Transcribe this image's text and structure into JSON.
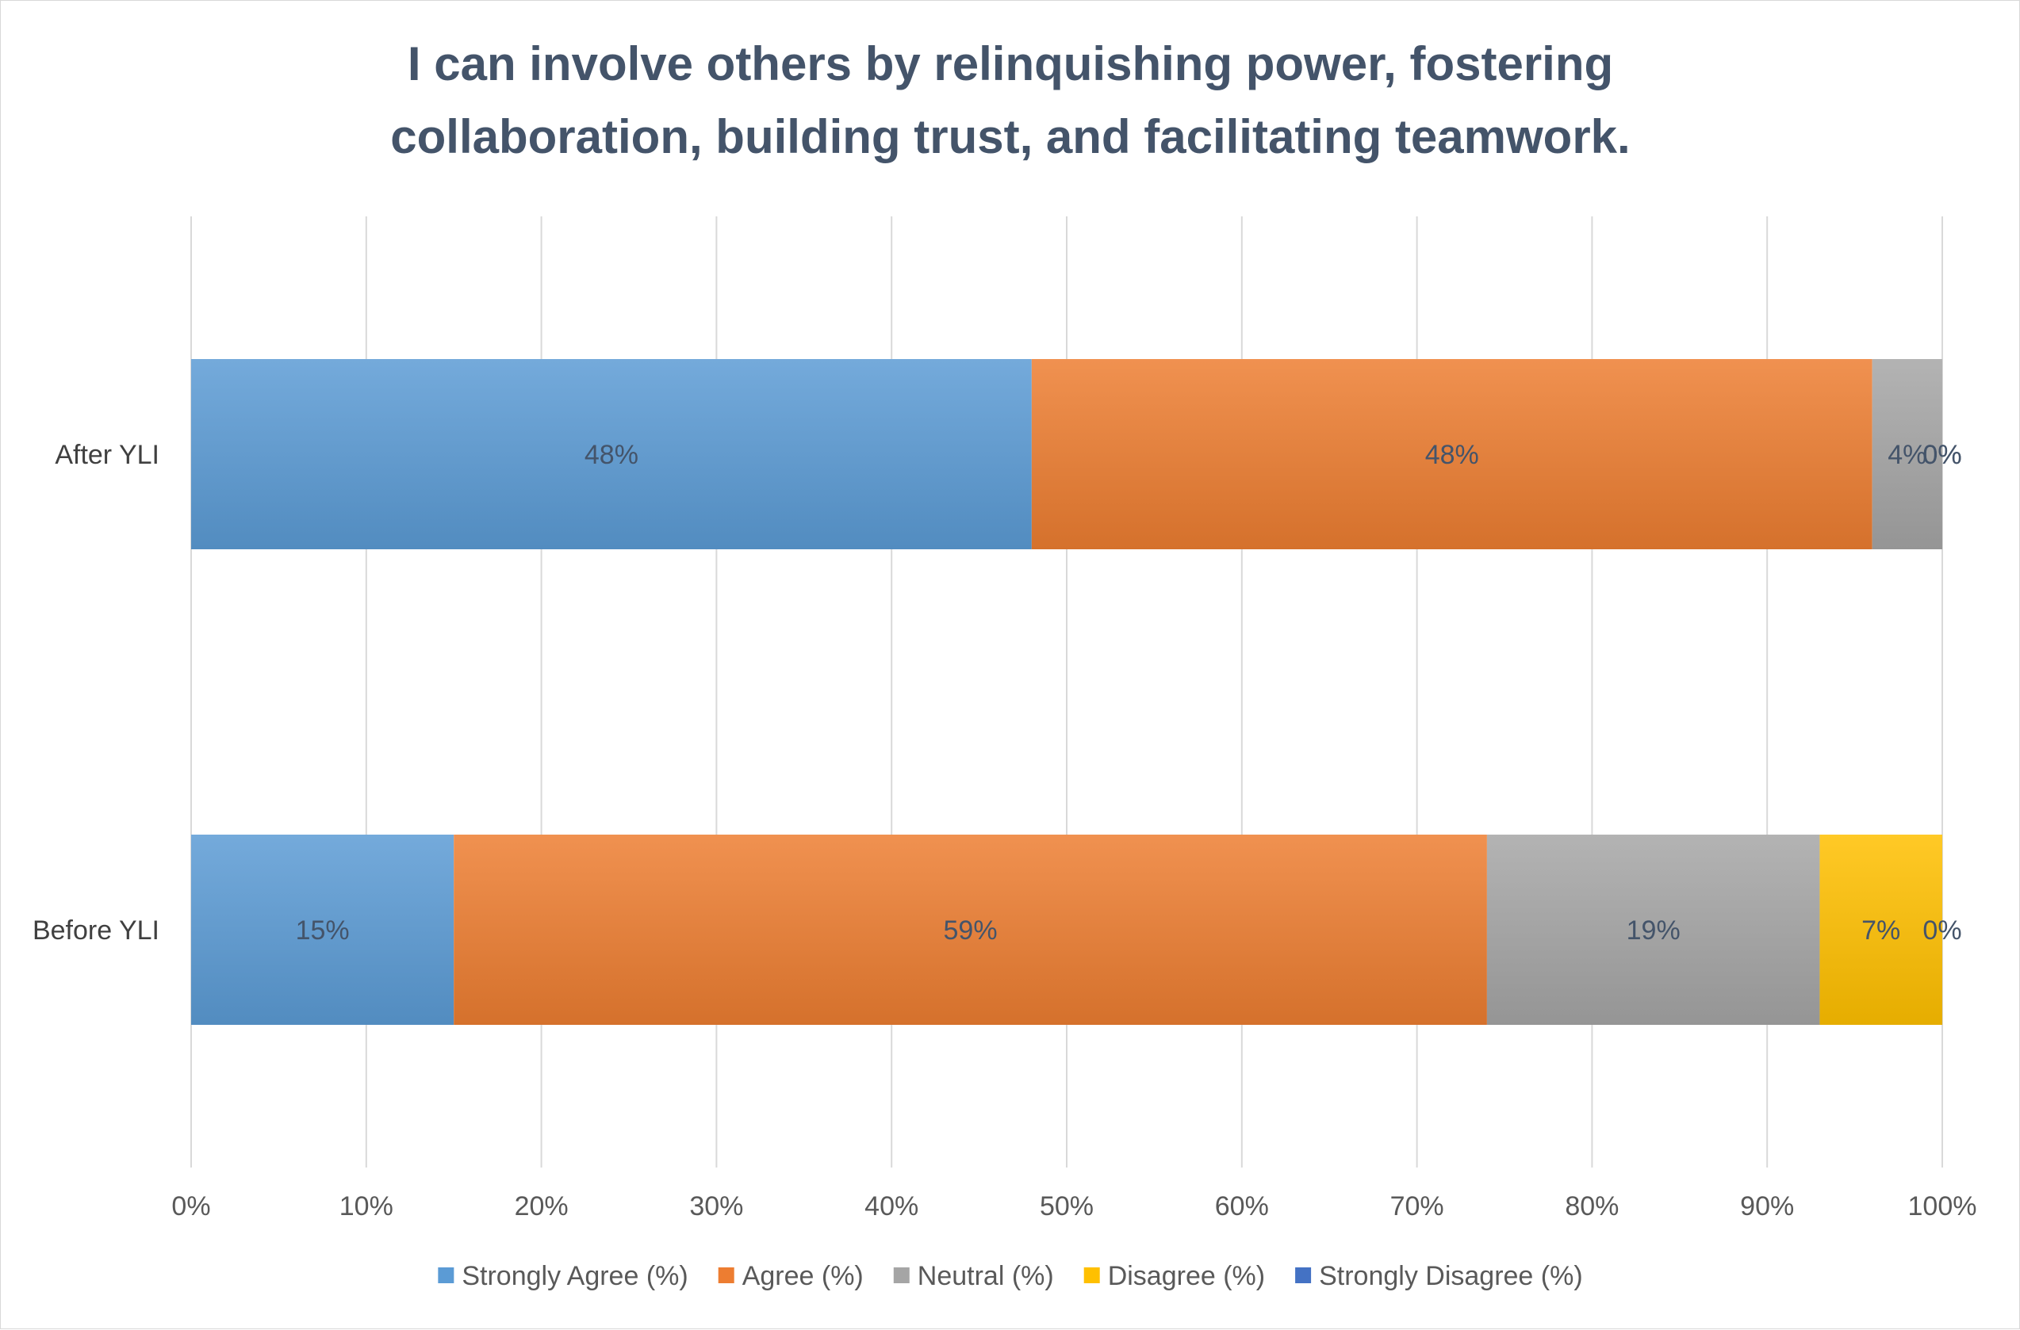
{
  "chart_data": {
    "type": "bar",
    "orientation": "horizontal",
    "stacked": "percent",
    "title": "I can involve others by relinquishing power, fostering collaboration, building trust, and facilitating teamwork.",
    "title_lines": [
      "I can involve others by relinquishing power, fostering",
      "collaboration, building trust, and facilitating teamwork."
    ],
    "categories": [
      "After YLI",
      "Before YLI"
    ],
    "series": [
      {
        "name": "Strongly Agree (%)",
        "color": "#5b9bd5",
        "values": [
          48,
          15
        ],
        "labels": [
          "48%",
          "15%"
        ]
      },
      {
        "name": "Agree (%)",
        "color": "#ed7d31",
        "values": [
          48,
          59
        ],
        "labels": [
          "48%",
          "59%"
        ]
      },
      {
        "name": "Neutral (%)",
        "color": "#a5a5a5",
        "values": [
          4,
          19
        ],
        "labels": [
          "4%",
          "19%"
        ]
      },
      {
        "name": "Disagree (%)",
        "color": "#ffc000",
        "values": [
          0,
          7
        ],
        "labels": [
          "0%",
          "7%"
        ]
      },
      {
        "name": "Strongly Disagree (%)",
        "color": "#4472c4",
        "values": [
          0,
          0
        ],
        "labels": [
          "0%",
          "0%"
        ]
      }
    ],
    "xlim": [
      0,
      100
    ],
    "xticks": [
      "0%",
      "10%",
      "20%",
      "30%",
      "40%",
      "50%",
      "60%",
      "70%",
      "80%",
      "90%",
      "100%"
    ],
    "xlabel": "",
    "ylabel": "",
    "grid": "vertical",
    "legend": "bottom"
  }
}
